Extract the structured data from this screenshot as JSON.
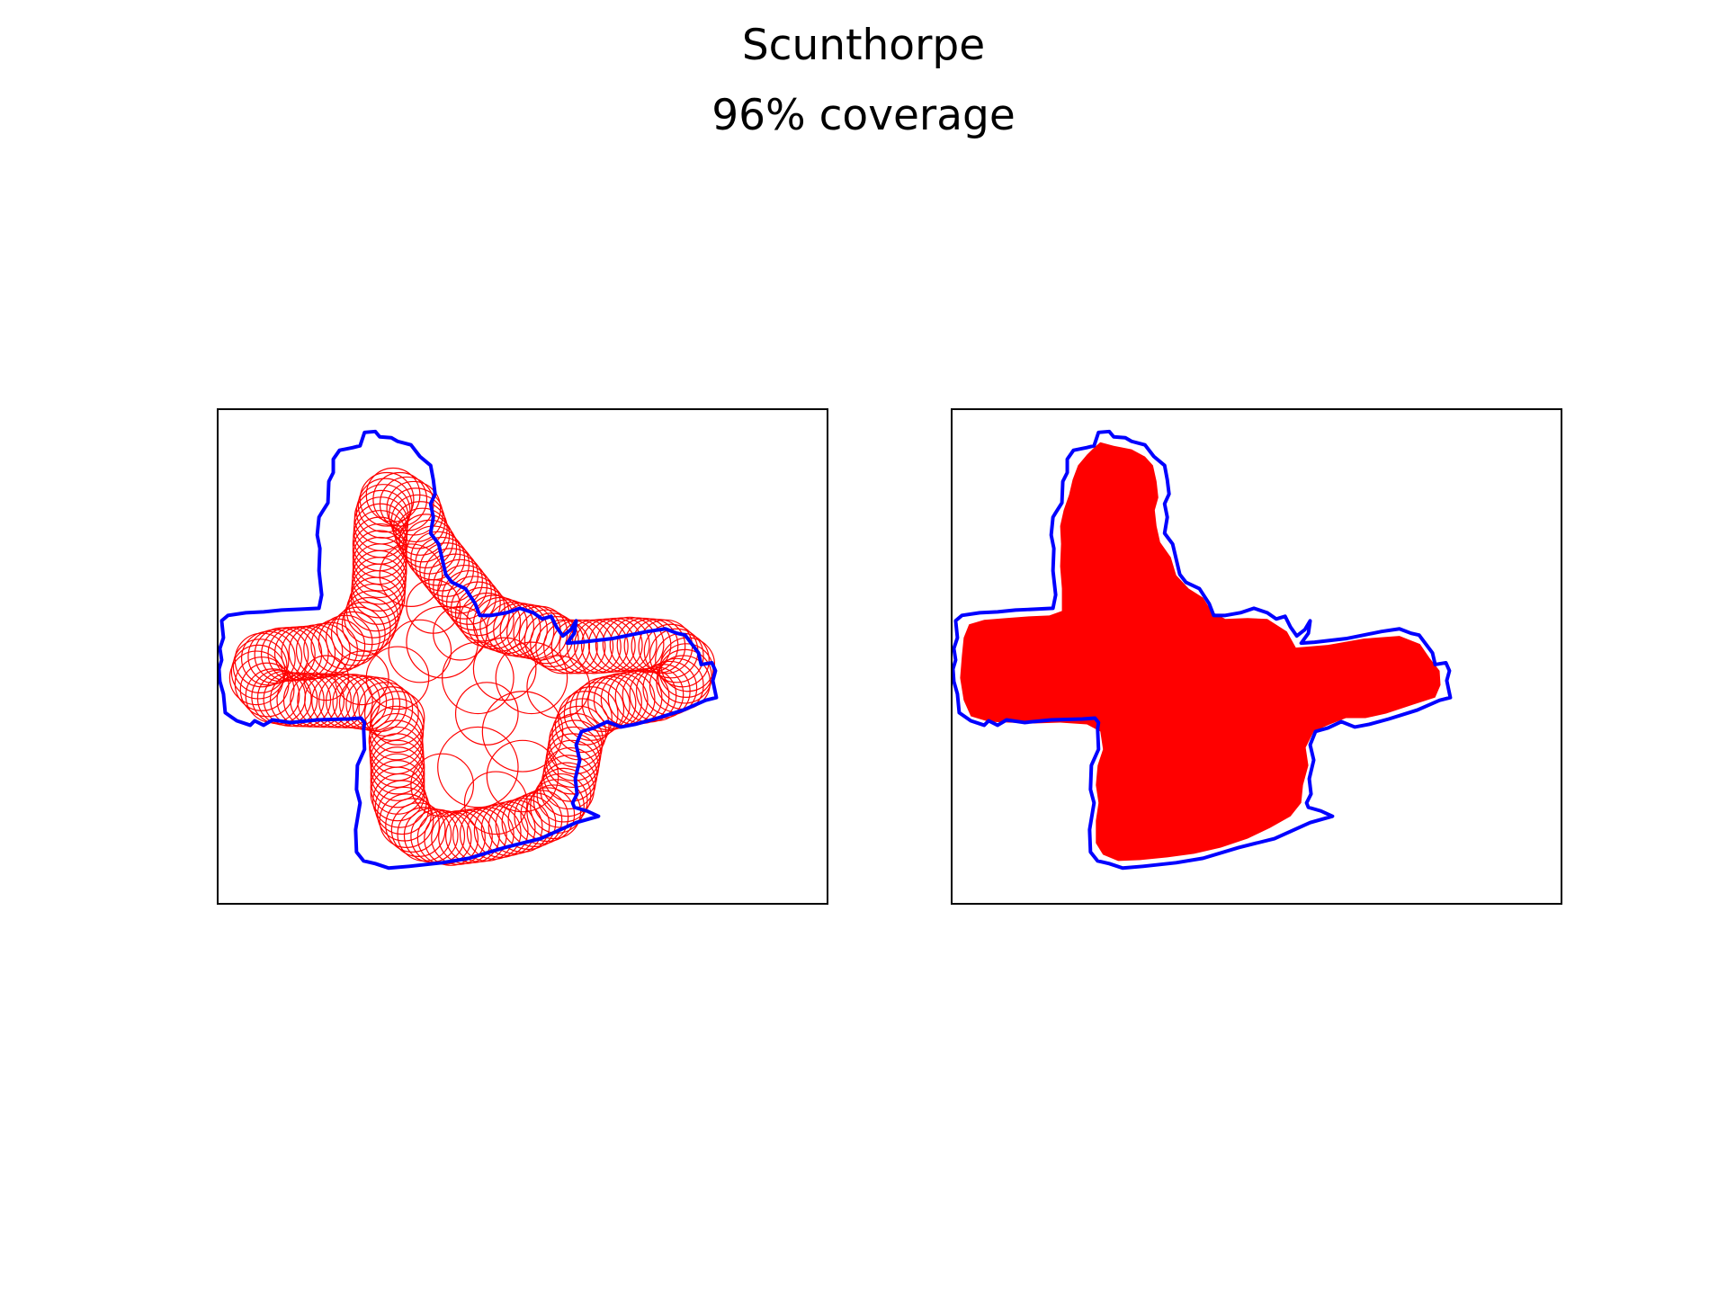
{
  "figure": {
    "title": "Scunthorpe",
    "subtitle": "96% coverage"
  },
  "colors": {
    "boundary": "#0000ff",
    "coverage": "#ff0000",
    "frame": "#000000"
  },
  "panels": [
    {
      "id": "left",
      "style": "circle outlines"
    },
    {
      "id": "right",
      "style": "filled coverage"
    }
  ]
}
